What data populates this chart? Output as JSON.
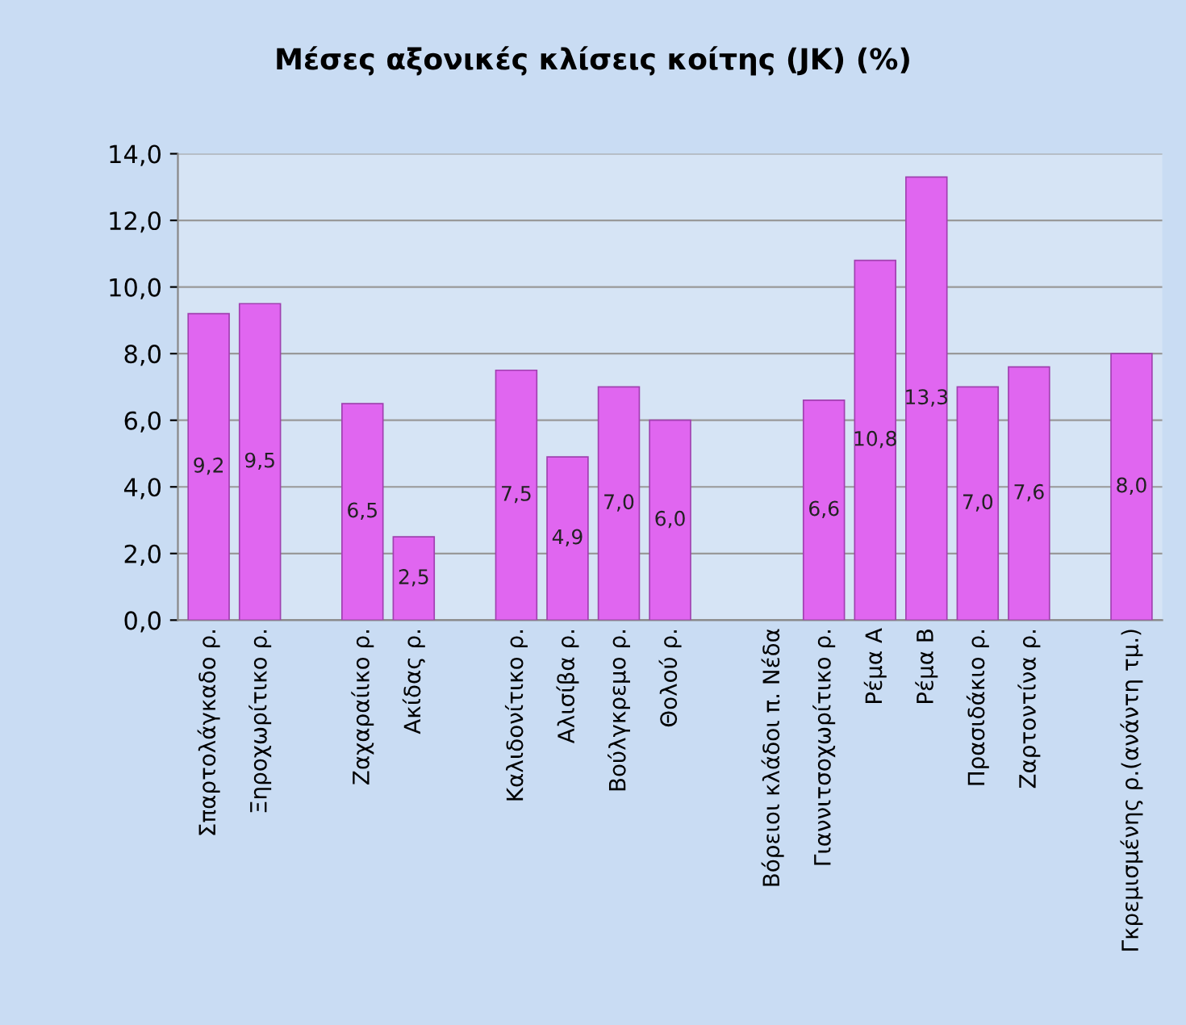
{
  "chart_data": {
    "type": "bar",
    "title": "Μέσες αξονικές κλίσεις κοίτης (JK) (%)",
    "categories": [
      "Σπαρτολάγκαδο ρ.",
      "Ξηροχωρίτικο ρ.",
      null,
      "Ζαχαραίικο ρ.",
      "Ακίδας ρ.",
      null,
      "Καλιδονίτικο ρ.",
      "Αλισίβα ρ.",
      "Βούλγκρεμο ρ.",
      "Θολού ρ.",
      null,
      "Βόρειοι κλάδοι π. Νέδα",
      "Γιαννιτσοχωρίτικο ρ.",
      "Ρέμα Α",
      "Ρέμα Β",
      "Πρασιδάκιο ρ.",
      "Ζαρτοντίνα ρ.",
      null,
      "Γκρεμισμένης ρ.(ανάντη τμ.)"
    ],
    "values": [
      9.2,
      9.5,
      null,
      6.5,
      2.5,
      null,
      7.5,
      4.9,
      7.0,
      6.0,
      null,
      null,
      6.6,
      10.8,
      13.3,
      7.0,
      7.6,
      null,
      8.0
    ],
    "value_labels": [
      "9,2",
      "9,5",
      null,
      "6,5",
      "2,5",
      null,
      "7,5",
      "4,9",
      "7,0",
      "6,0",
      null,
      null,
      "6,6",
      "10,8",
      "13,3",
      "7,0",
      "7,6",
      null,
      "8,0"
    ],
    "color": "#e066f0",
    "ylim": [
      0,
      14
    ],
    "yticks": [
      {
        "value": 0,
        "label": "0,0"
      },
      {
        "value": 2,
        "label": "2,0"
      },
      {
        "value": 4,
        "label": "4,0"
      },
      {
        "value": 6,
        "label": "6,0"
      },
      {
        "value": 8,
        "label": "8,0"
      },
      {
        "value": 10,
        "label": "10,0"
      },
      {
        "value": 12,
        "label": "12,0"
      },
      {
        "value": 14,
        "label": "14,0"
      }
    ],
    "grid": "y"
  }
}
